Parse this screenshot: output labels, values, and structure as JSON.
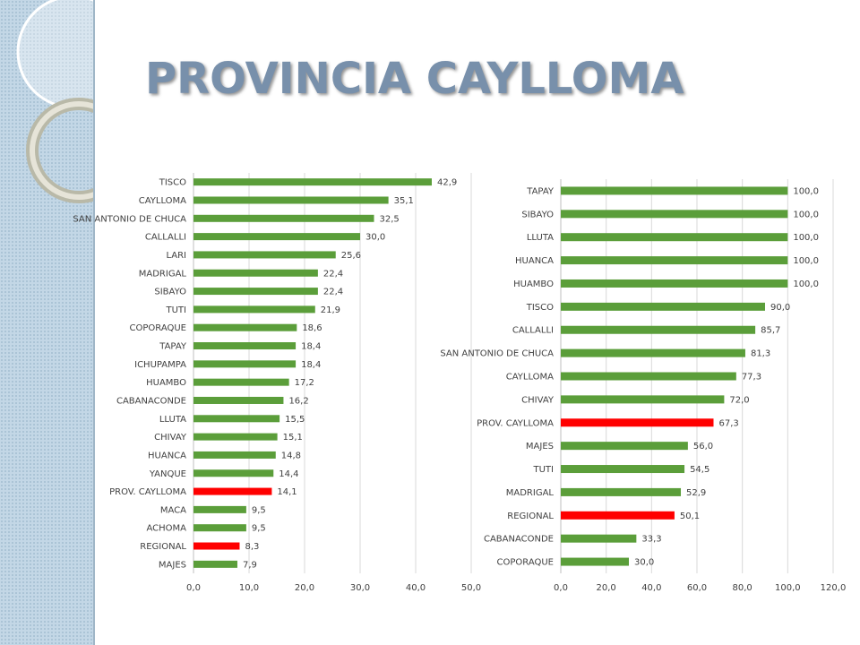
{
  "slide": {
    "title": "PROVINCIA CAYLLOMA"
  },
  "colors": {
    "series": "#5b9e3a",
    "highlight": "#ff0000",
    "grid": "#d9d9d9",
    "title": "#7890ab"
  },
  "chart_data": [
    {
      "type": "bar",
      "orientation": "horizontal",
      "title": "",
      "xlabel": "",
      "ylabel": "",
      "xlim": [
        0,
        50
      ],
      "ticks": [
        "0,0",
        "10,0",
        "20,0",
        "30,0",
        "40,0",
        "50,0"
      ],
      "tick_values": [
        0,
        10,
        20,
        30,
        40,
        50
      ],
      "grid": true,
      "legend": "none",
      "categories": [
        "TISCO",
        "CAYLLOMA",
        "SAN ANTONIO DE CHUCA",
        "CALLALLI",
        "LARI",
        "MADRIGAL",
        "SIBAYO",
        "TUTI",
        "COPORAQUE",
        "TAPAY",
        "ICHUPAMPA",
        "HUAMBO",
        "CABANACONDE",
        "LLUTA",
        "CHIVAY",
        "HUANCA",
        "YANQUE",
        "PROV. CAYLLOMA",
        "MACA",
        "ACHOMA",
        "REGIONAL",
        "MAJES"
      ],
      "values": [
        42.9,
        35.1,
        32.5,
        30.0,
        25.6,
        22.4,
        22.4,
        21.9,
        18.6,
        18.4,
        18.4,
        17.2,
        16.2,
        15.5,
        15.1,
        14.8,
        14.4,
        14.1,
        9.5,
        9.5,
        8.3,
        7.9
      ],
      "value_labels": [
        "42,9",
        "35,1",
        "32,5",
        "30,0",
        "25,6",
        "22,4",
        "22,4",
        "21,9",
        "18,6",
        "18,4",
        "18,4",
        "17,2",
        "16,2",
        "15,5",
        "15,1",
        "14,8",
        "14,4",
        "14,1",
        "9,5",
        "9,5",
        "8,3",
        "7,9"
      ],
      "highlighted": [
        "PROV. CAYLLOMA",
        "REGIONAL"
      ]
    },
    {
      "type": "bar",
      "orientation": "horizontal",
      "title": "",
      "xlabel": "",
      "ylabel": "",
      "xlim": [
        0,
        120
      ],
      "ticks": [
        "0,0",
        "20,0",
        "40,0",
        "60,0",
        "80,0",
        "100,0",
        "120,0"
      ],
      "tick_values": [
        0,
        20,
        40,
        60,
        80,
        100,
        120
      ],
      "grid": true,
      "legend": "none",
      "categories": [
        "TAPAY",
        "SIBAYO",
        "LLUTA",
        "HUANCA",
        "HUAMBO",
        "TISCO",
        "CALLALLI",
        "SAN ANTONIO DE CHUCA",
        "CAYLLOMA",
        "CHIVAY",
        "PROV. CAYLLOMA",
        "MAJES",
        "TUTI",
        "MADRIGAL",
        "REGIONAL",
        "CABANACONDE",
        "COPORAQUE"
      ],
      "values": [
        100.0,
        100.0,
        100.0,
        100.0,
        100.0,
        90.0,
        85.7,
        81.3,
        77.3,
        72.0,
        67.3,
        56.0,
        54.5,
        52.9,
        50.1,
        33.3,
        30.0
      ],
      "value_labels": [
        "100,0",
        "100,0",
        "100,0",
        "100,0",
        "100,0",
        "90,0",
        "85,7",
        "81,3",
        "77,3",
        "72,0",
        "67,3",
        "56,0",
        "54,5",
        "52,9",
        "50,1",
        "33,3",
        "30,0"
      ],
      "highlighted": [
        "PROV. CAYLLOMA",
        "REGIONAL"
      ]
    }
  ]
}
